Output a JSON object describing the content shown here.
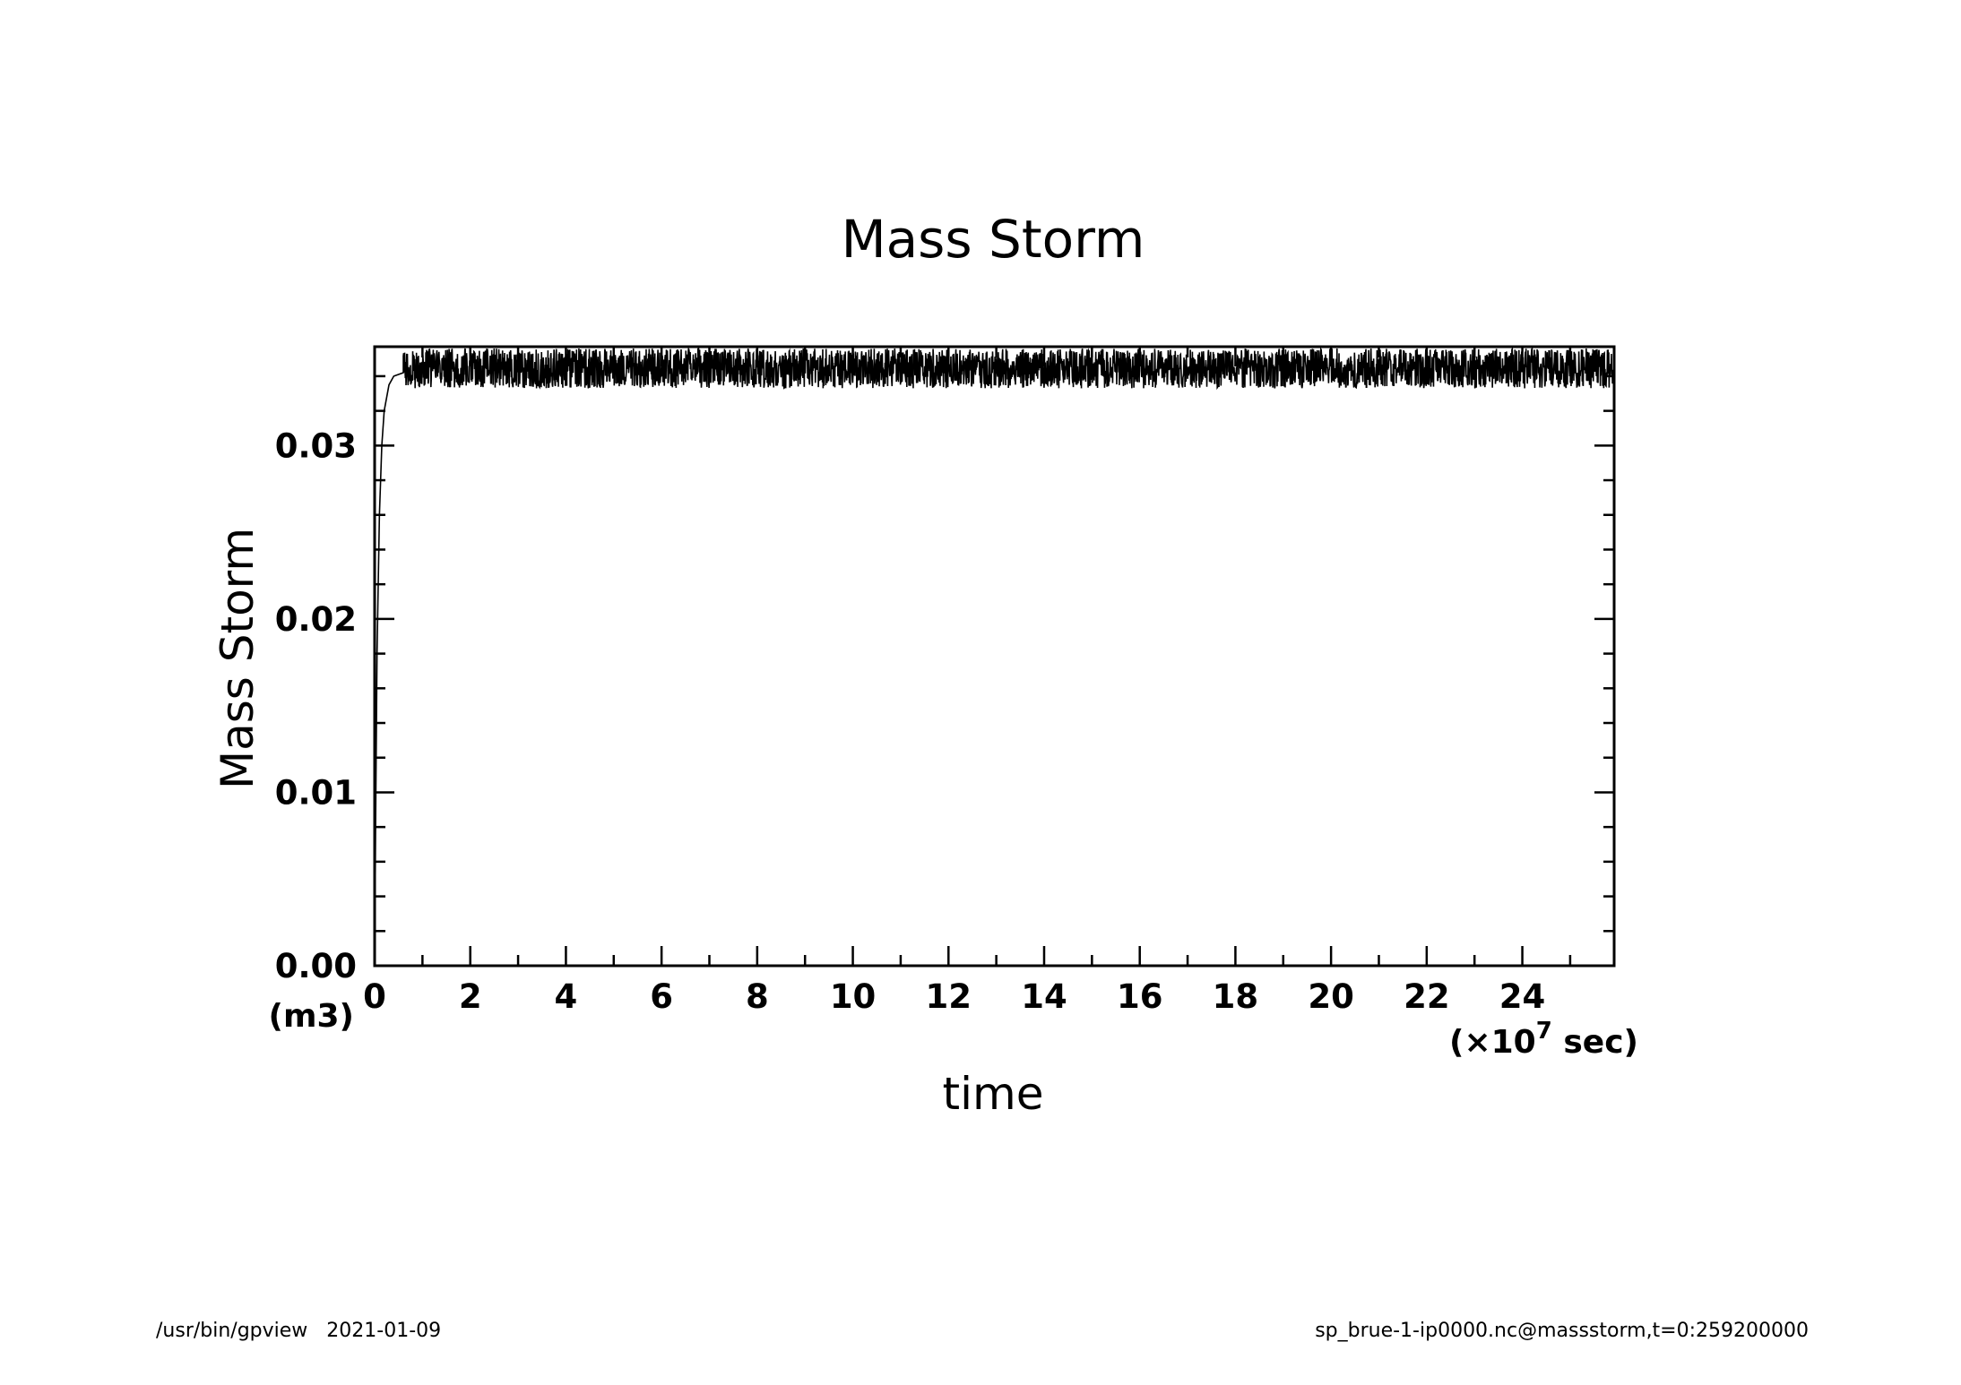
{
  "footer": {
    "left": "/usr/bin/gpview   2021-01-09",
    "right": "sp_brue-1-ip0000.nc@massstorm,t=0:259200000"
  },
  "chart_data": {
    "type": "line",
    "title": "Mass Storm",
    "xlabel": "time",
    "ylabel": "Mass Storm",
    "x_unit_prefix": "(×10",
    "x_unit_exponent": "7",
    "x_unit_suffix": " sec)",
    "y_unit": "(m3)",
    "xlim": [
      0,
      25.92
    ],
    "ylim": [
      0,
      0.0357
    ],
    "xticks": [
      "0",
      "2",
      "4",
      "6",
      "8",
      "10",
      "12",
      "14",
      "16",
      "18",
      "20",
      "22",
      "24"
    ],
    "yticks": [
      "0.00",
      "0.01",
      "0.02",
      "0.03"
    ],
    "grid": false,
    "legend": "none",
    "line_color": "#000000",
    "series": [
      {
        "x": [
          0,
          0.02,
          0.05,
          0.1,
          0.15,
          0.2,
          0.3,
          0.4,
          0.6,
          0.8,
          1.0,
          2,
          4,
          6,
          8,
          10,
          12,
          14,
          16,
          18,
          20,
          22,
          24,
          25.92
        ],
        "values": [
          0.0,
          0.008,
          0.018,
          0.026,
          0.03,
          0.032,
          0.0335,
          0.034,
          0.0342,
          0.0343,
          0.0343,
          0.0343,
          0.0343,
          0.0343,
          0.0343,
          0.0343,
          0.0343,
          0.0343,
          0.0343,
          0.0343,
          0.0343,
          0.0343,
          0.0343,
          0.0343
        ],
        "oscillation_range": [
          0.0333,
          0.0356
        ]
      }
    ]
  }
}
